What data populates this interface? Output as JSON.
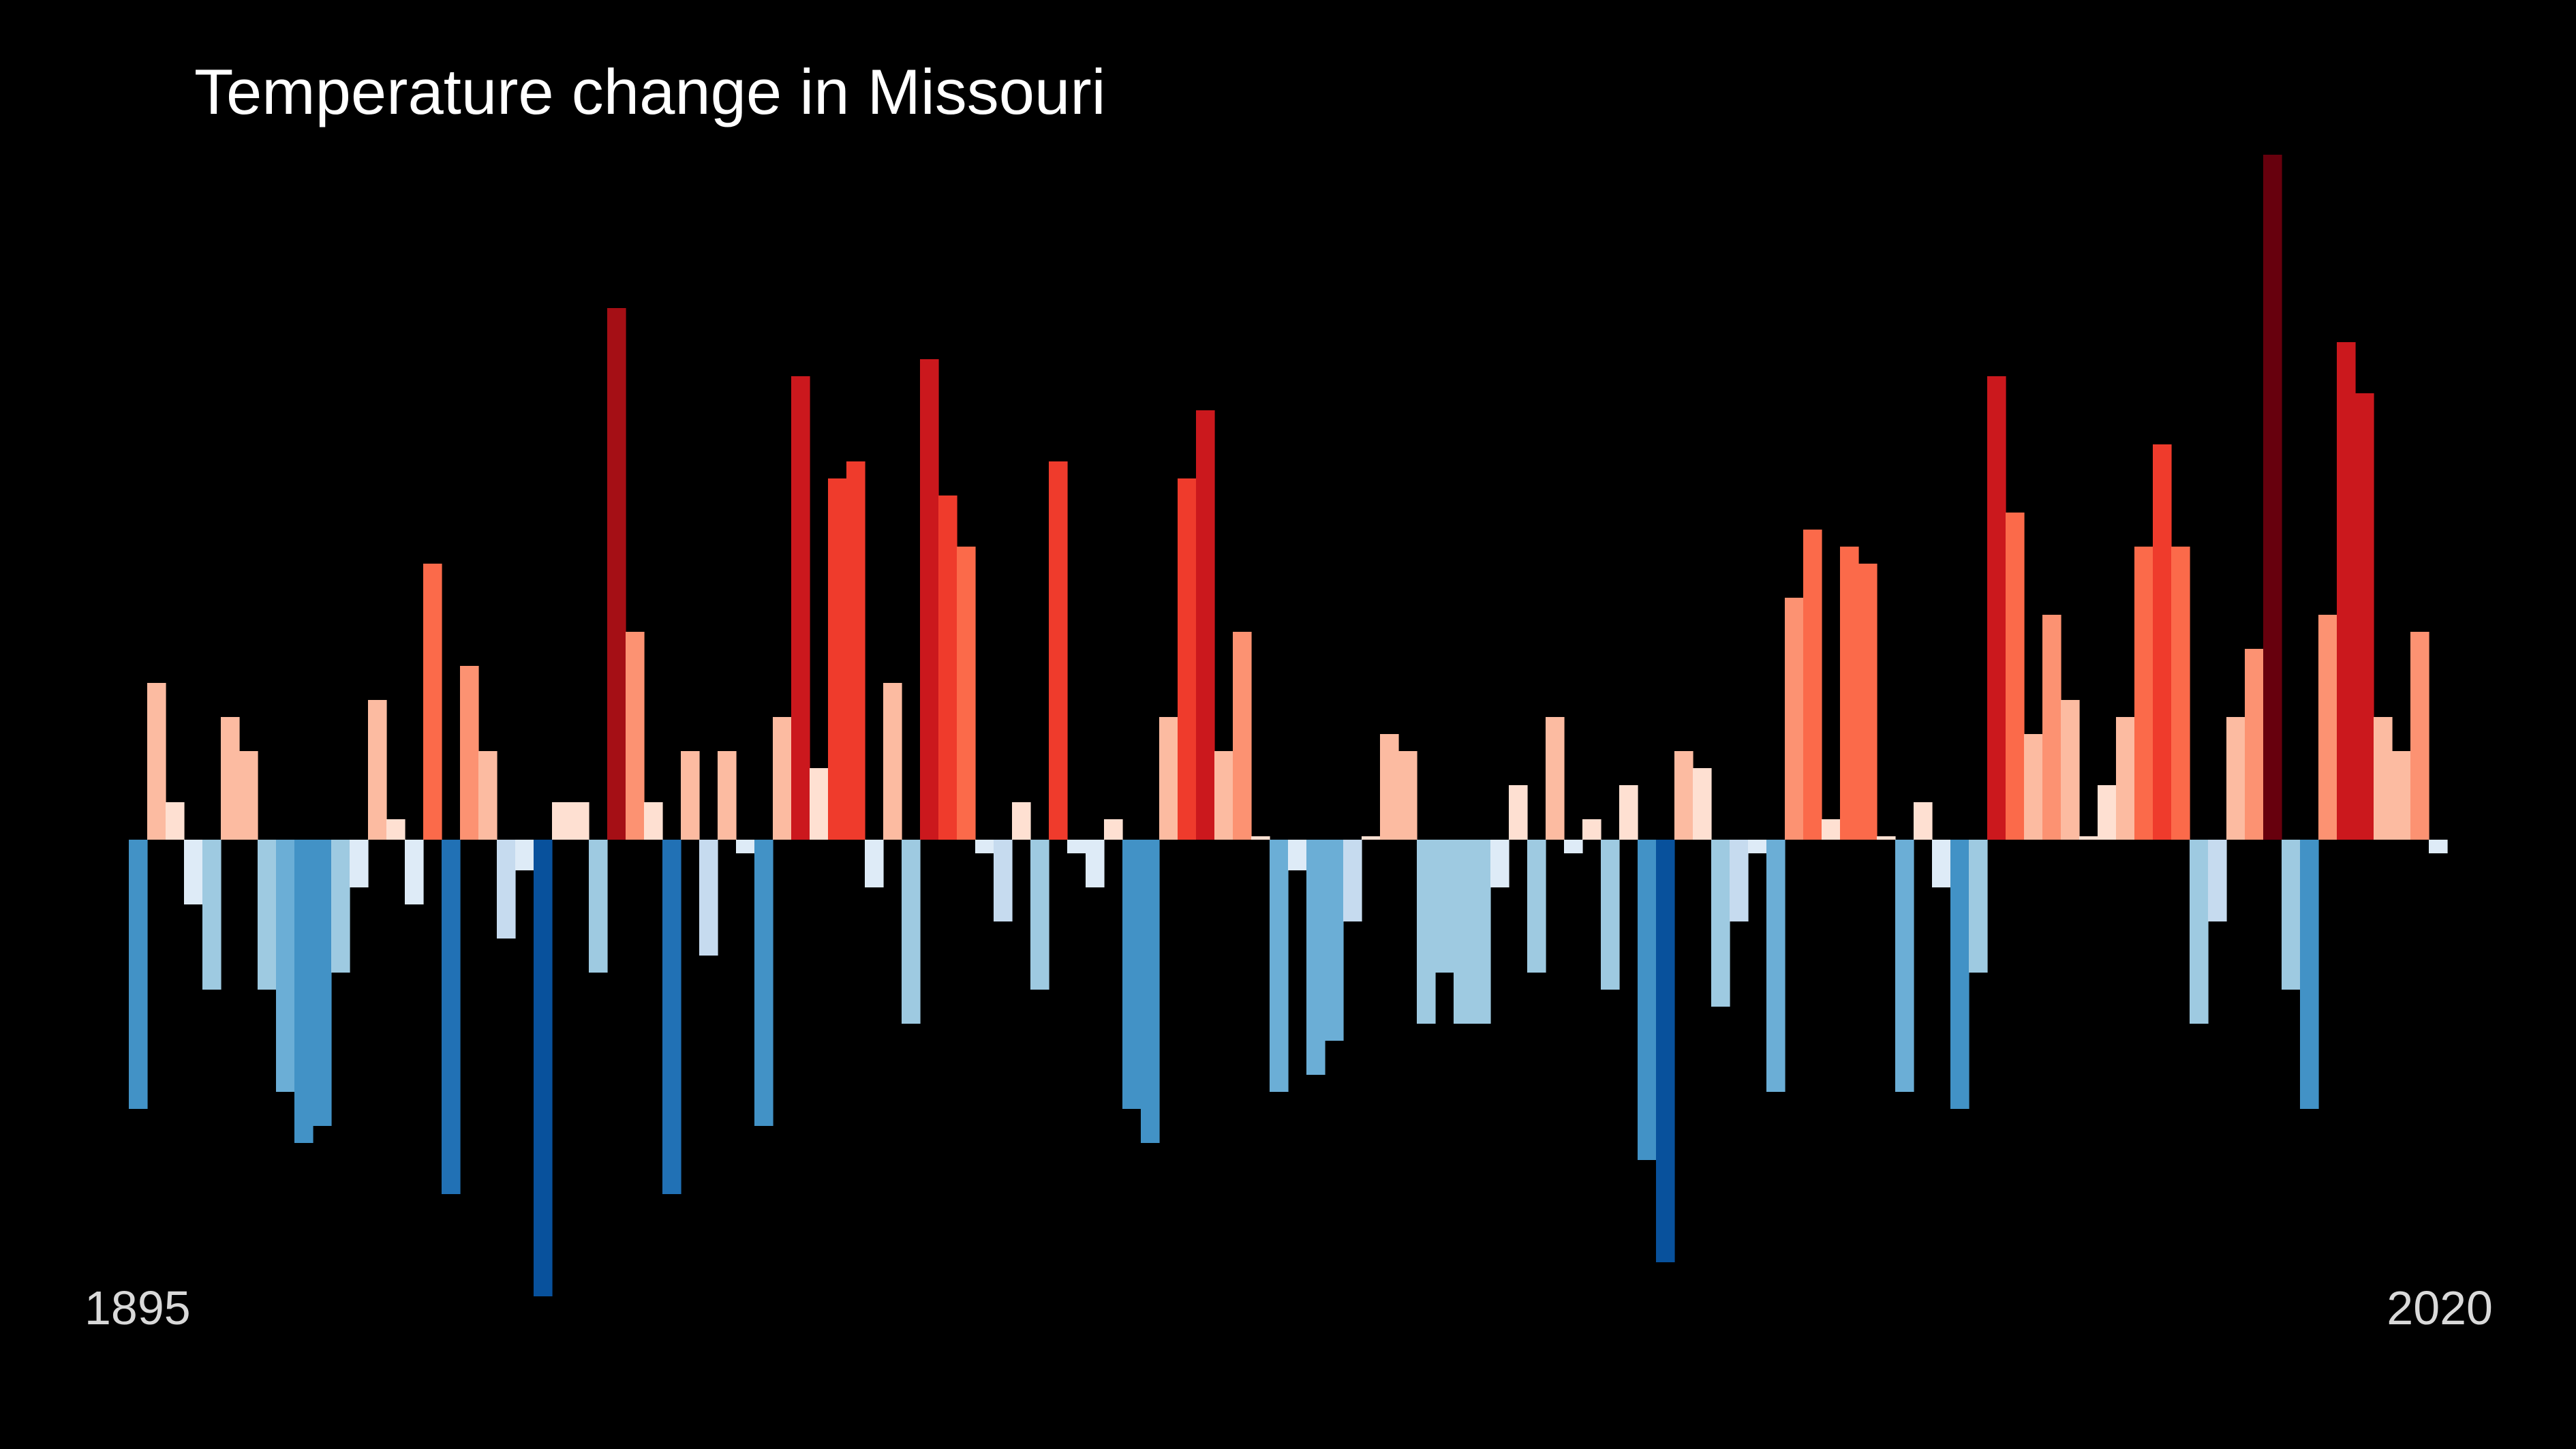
{
  "page": {
    "background": "#000000"
  },
  "chart_data": {
    "type": "bar",
    "title": "Temperature change in Missouri",
    "xlabel": "",
    "ylabel": "",
    "x_start_label": "1895",
    "x_end_label": "2020",
    "grid": false,
    "legend": "none",
    "ylim": [
      -1.34,
      2.0
    ],
    "categories": [
      1895,
      1896,
      1897,
      1898,
      1899,
      1900,
      1901,
      1902,
      1903,
      1904,
      1905,
      1906,
      1907,
      1908,
      1909,
      1910,
      1911,
      1912,
      1913,
      1914,
      1915,
      1916,
      1917,
      1918,
      1919,
      1920,
      1921,
      1922,
      1923,
      1924,
      1925,
      1926,
      1927,
      1928,
      1929,
      1930,
      1931,
      1932,
      1933,
      1934,
      1935,
      1936,
      1937,
      1938,
      1939,
      1940,
      1941,
      1942,
      1943,
      1944,
      1945,
      1946,
      1947,
      1948,
      1949,
      1950,
      1951,
      1952,
      1953,
      1954,
      1955,
      1956,
      1957,
      1958,
      1959,
      1960,
      1961,
      1962,
      1963,
      1964,
      1965,
      1966,
      1967,
      1968,
      1969,
      1970,
      1971,
      1972,
      1973,
      1974,
      1975,
      1976,
      1977,
      1978,
      1979,
      1980,
      1981,
      1982,
      1983,
      1984,
      1985,
      1986,
      1987,
      1988,
      1989,
      1990,
      1991,
      1992,
      1993,
      1994,
      1995,
      1996,
      1997,
      1998,
      1999,
      2000,
      2001,
      2002,
      2003,
      2004,
      2005,
      2006,
      2007,
      2008,
      2009,
      2010,
      2011,
      2012,
      2013,
      2014,
      2015,
      2016,
      2017,
      2018,
      2019,
      2020
    ],
    "values": [
      -0.79,
      0.46,
      0.11,
      -0.19,
      -0.44,
      0.36,
      0.26,
      -0.44,
      -0.74,
      -0.89,
      -0.84,
      -0.39,
      -0.14,
      0.41,
      0.06,
      -0.19,
      0.81,
      -1.04,
      0.51,
      0.26,
      -0.29,
      -0.09,
      -1.34,
      0.11,
      0.11,
      -0.39,
      1.56,
      0.61,
      0.11,
      -1.04,
      0.26,
      -0.34,
      0.26,
      -0.04,
      -0.84,
      0.36,
      1.36,
      0.21,
      1.06,
      1.11,
      -0.14,
      0.46,
      -0.54,
      1.41,
      1.01,
      0.86,
      -0.04,
      -0.24,
      0.11,
      -0.44,
      1.11,
      -0.04,
      -0.14,
      0.06,
      -0.79,
      -0.89,
      0.36,
      1.06,
      1.26,
      0.26,
      0.61,
      0.01,
      -0.74,
      -0.09,
      -0.69,
      -0.59,
      -0.24,
      0.01,
      0.31,
      0.26,
      -0.54,
      -0.39,
      -0.54,
      -0.54,
      -0.14,
      0.16,
      -0.39,
      0.36,
      -0.04,
      0.06,
      -0.44,
      0.16,
      -0.94,
      -1.24,
      0.26,
      0.21,
      -0.49,
      -0.24,
      -0.04,
      -0.74,
      0.71,
      0.91,
      0.06,
      0.86,
      0.81,
      0.01,
      -0.74,
      0.11,
      -0.14,
      -0.79,
      -0.39,
      1.36,
      0.96,
      0.31,
      0.66,
      0.41,
      0.01,
      0.16,
      0.36,
      0.86,
      1.16,
      0.86,
      -0.54,
      -0.24,
      0.36,
      0.56,
      2.01,
      -0.44,
      -0.79,
      0.66,
      1.46,
      1.31,
      0.36,
      0.26,
      0.61,
      -0.04
    ],
    "color_scale": {
      "cold": [
        "#deebf7",
        "#c6dbef",
        "#9ecae1",
        "#6baed6",
        "#4292c6",
        "#2171b5",
        "#08519c"
      ],
      "warm": [
        "#fee0d2",
        "#fcbba1",
        "#fc9272",
        "#fb6a4a",
        "#ef3b2c",
        "#cb181d",
        "#a50f15",
        "#67000d"
      ]
    }
  }
}
